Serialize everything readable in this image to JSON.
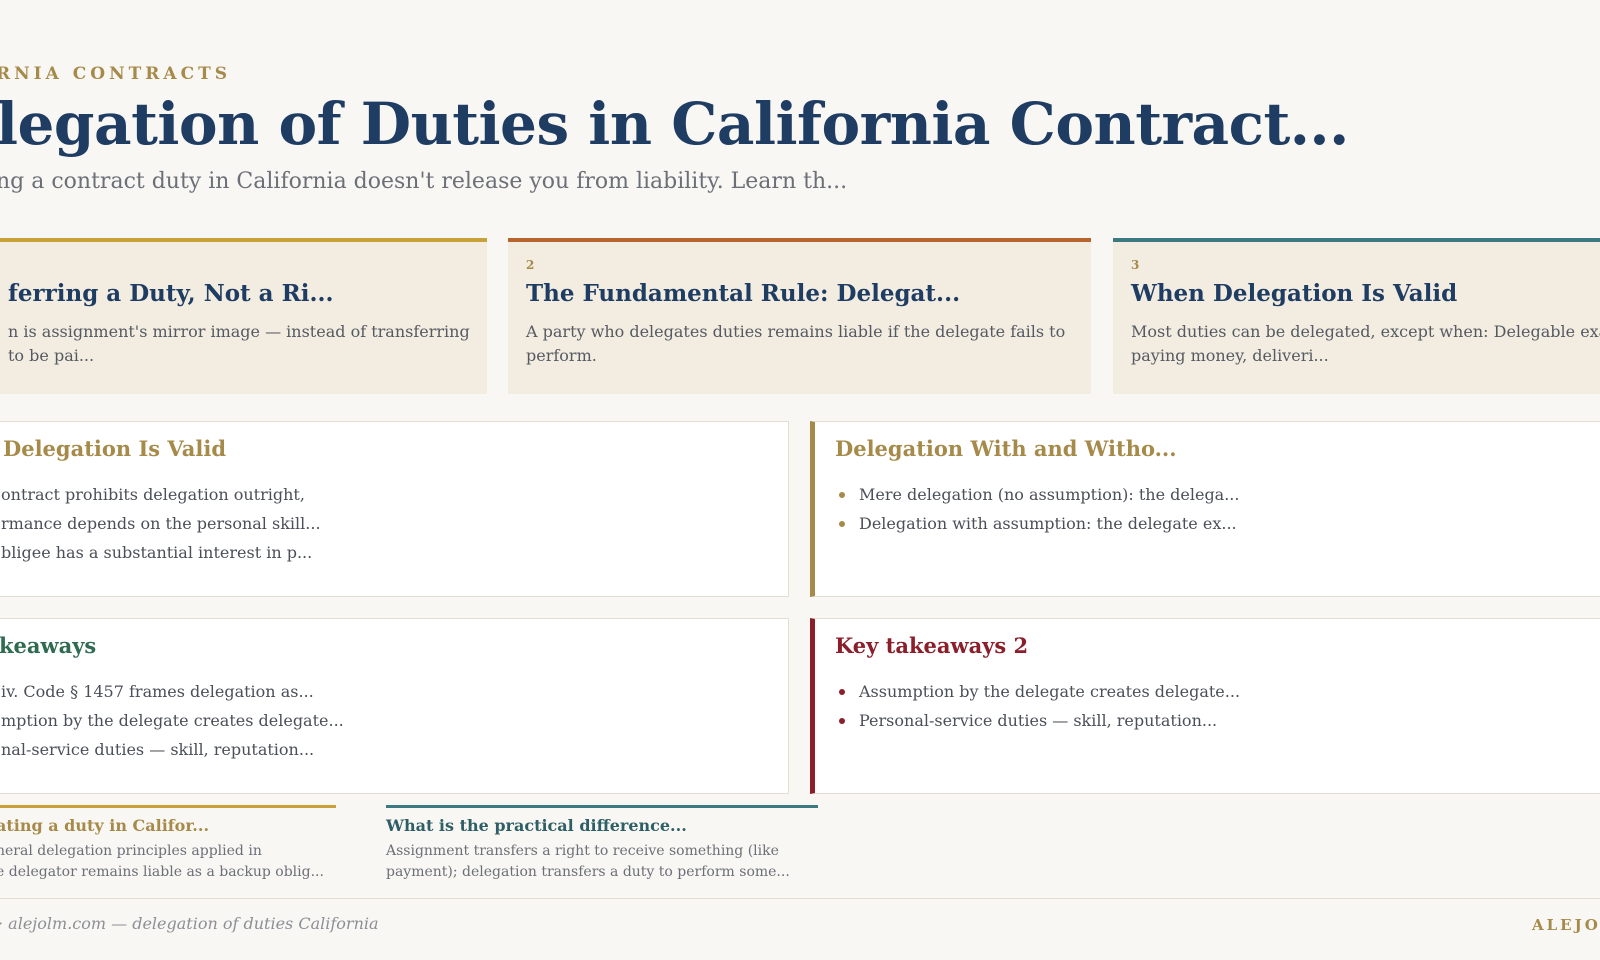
{
  "header": {
    "eyebrow": "RNIA CONTRACTS",
    "title": "legation of Duties in California Contract...",
    "subtitle": "ng a contract duty in California doesn't release you from liability. Learn th..."
  },
  "steps": [
    {
      "number": "",
      "title": "ferring a Duty, Not a Ri...",
      "body": "n is assignment's mirror image — instead of transferring to be pai...",
      "accent": "#c9a13a"
    },
    {
      "number": "2",
      "title": "The Fundamental Rule: Delegat...",
      "body": "A party who delegates duties remains liable if the delegate fails to perform.",
      "accent": "#b8642f"
    },
    {
      "number": "3",
      "title": "When Delegation Is Valid",
      "body": "Most duties can be delegated, except when: Delegable exa paying money, deliveri...",
      "accent": "#3a7a80"
    }
  ],
  "panels": {
    "valid": {
      "title": "Delegation Is Valid",
      "items": [
        "ontract prohibits delegation outright,",
        "rmance depends on the personal skill...",
        "bligee has a substantial interest in p..."
      ],
      "color": "#a68a4a"
    },
    "with_without": {
      "title": "Delegation With and Witho...",
      "items": [
        "Mere delegation (no assumption): the delega...",
        "Delegation with assumption: the delegate ex..."
      ],
      "color": "#a68a4a"
    },
    "takeaways": {
      "title": "keaways",
      "items": [
        "iv. Code § 1457 frames delegation as...",
        "mption by the delegate creates delegate...",
        "nal-service duties — skill, reputation..."
      ],
      "color": "#2f6b50"
    },
    "takeaways2": {
      "title": "Key takeaways 2",
      "items": [
        "Assumption by the delegate creates delegate...",
        "Personal-service duties — skill, reputation..."
      ],
      "color": "#8a1f2b"
    }
  },
  "faqs": [
    {
      "question": "ating a duty in Califor...",
      "answer_lines": [
        "neral delegation principles applied in",
        "e delegator remains liable as a backup oblig..."
      ],
      "color": "#a68a4a",
      "accent": "#c9a13a"
    },
    {
      "question": "What is the practical difference...",
      "answer_lines": [
        "Assignment transfers a right to receive something (like",
        "payment); delegation transfers a duty to perform some..."
      ],
      "color": "#2f5f66",
      "accent": "#3a7a80"
    }
  ],
  "footer": {
    "left": "· alejolm.com — delegation of duties California",
    "right": "ALEJO"
  }
}
